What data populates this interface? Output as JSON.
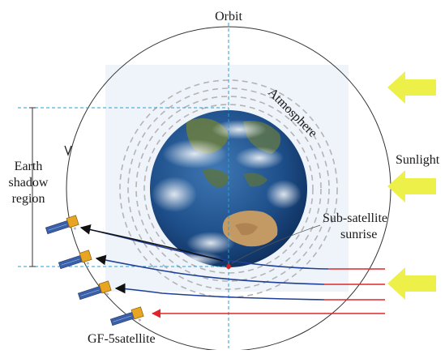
{
  "labels": {
    "orbit": "Orbit",
    "atmosphere": "Atmosphere",
    "sunlight": "Sunlight",
    "shadow_line1": "Earth",
    "shadow_line2": "shadow",
    "shadow_line3": "region",
    "subsat_line1": "Sub-satellite",
    "subsat_line2": "sunrise",
    "satellite": "GF-5satellite"
  },
  "colors": {
    "sunlight_arrow": "#eef04a",
    "ray_red": "#e0262a",
    "ray_blue": "#1f3f97",
    "ray_black": "#111111",
    "guide_cyan": "#2a9fd6",
    "atmosphere_ring": "#b4b4b4",
    "orbit_line": "#333333",
    "ocean": "#1e4f8a",
    "land_green": "#6b7e3e",
    "land_desert": "#c49a64",
    "subsatellite_point": "#d42020",
    "panel_bg": "#eef4fa"
  },
  "icons": [
    "satellite-icon",
    "earth-icon",
    "sunlight-arrow-icon"
  ]
}
